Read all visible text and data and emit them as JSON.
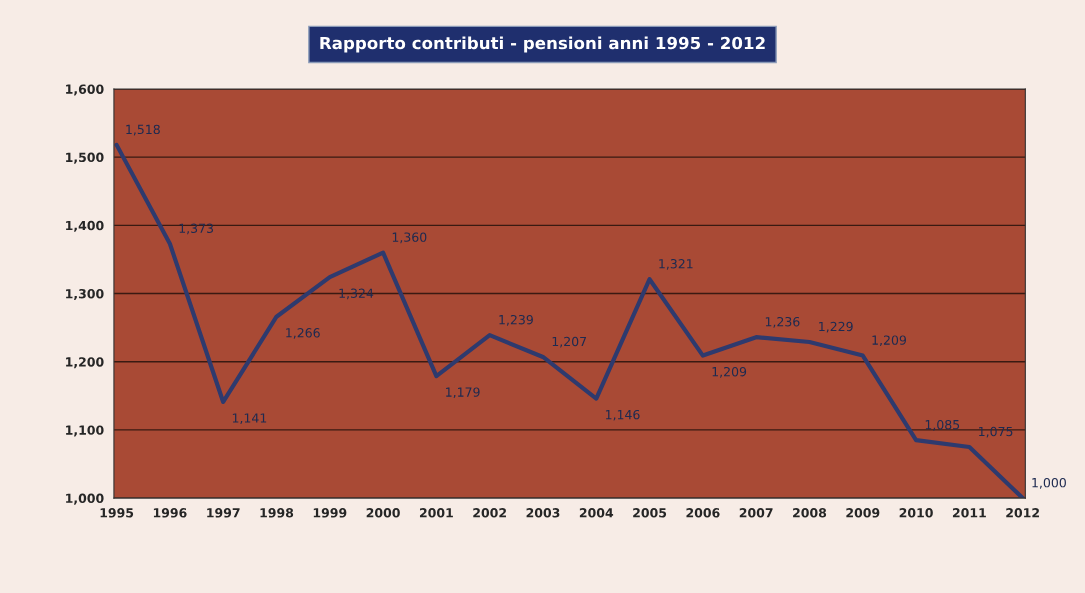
{
  "chart_data": {
    "type": "line",
    "title": "Rapporto contributi - pensioni anni 1995 - 2012",
    "categories": [
      "1995",
      "1996",
      "1997",
      "1998",
      "1999",
      "2000",
      "2001",
      "2002",
      "2003",
      "2004",
      "2005",
      "2006",
      "2007",
      "2008",
      "2009",
      "2010",
      "2011",
      "2012"
    ],
    "series": [
      {
        "color": "#2e3a6e",
        "values": [
          1518,
          1373,
          1141,
          1266,
          1324,
          1360,
          1179,
          1239,
          1207,
          1146,
          1321,
          1209,
          1236,
          1229,
          1209,
          1085,
          1075,
          1000
        ],
        "value_labels": [
          "1,518",
          "1,373",
          "1,141",
          "1,266",
          "1,324",
          "1,360",
          "1,179",
          "1,239",
          "1,207",
          "1,146",
          "1,321",
          "1,209",
          "1,236",
          "1,229",
          "1,209",
          "1,085",
          "1,075",
          "1,000"
        ]
      }
    ],
    "ylim": [
      1000,
      1600
    ],
    "yticks": [
      {
        "value": 1000,
        "label": "1,000"
      },
      {
        "value": 1100,
        "label": "1,100"
      },
      {
        "value": 1200,
        "label": "1,200"
      },
      {
        "value": 1300,
        "label": "1,300"
      },
      {
        "value": 1400,
        "label": "1,400"
      },
      {
        "value": 1500,
        "label": "1,500"
      },
      {
        "value": 1600,
        "label": "1,600"
      }
    ],
    "grid": "y",
    "marker": "none",
    "line_style": "solid",
    "legend": false
  }
}
